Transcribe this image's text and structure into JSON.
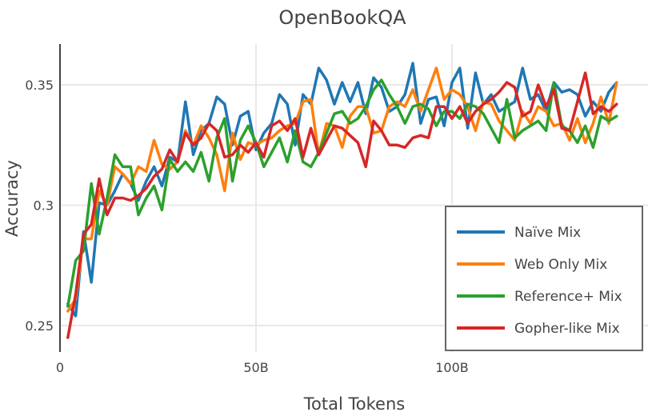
{
  "chart_data": {
    "type": "line",
    "title": "OpenBookQA",
    "xlabel": "Total Tokens",
    "ylabel": "Accuracy",
    "xlim": [
      0,
      150
    ],
    "ylim": [
      0.239,
      0.367
    ],
    "x_ticks": [
      {
        "value": 0,
        "label": "0"
      },
      {
        "value": 50,
        "label": "50B"
      },
      {
        "value": 100,
        "label": "100B"
      }
    ],
    "y_ticks": [
      {
        "value": 0.25,
        "label": "0.25"
      },
      {
        "value": 0.3,
        "label": "0.3"
      },
      {
        "value": 0.35,
        "label": "0.35"
      }
    ],
    "grid": true,
    "legend_position": "bottom-right",
    "x_start": 2,
    "x_step": 2,
    "series": [
      {
        "name": "Naïve Mix",
        "color": "#1f77b4",
        "values": [
          0.259,
          0.254,
          0.289,
          0.268,
          0.301,
          0.3,
          0.306,
          0.313,
          0.309,
          0.302,
          0.31,
          0.316,
          0.308,
          0.32,
          0.318,
          0.343,
          0.321,
          0.331,
          0.334,
          0.345,
          0.342,
          0.325,
          0.337,
          0.339,
          0.323,
          0.33,
          0.334,
          0.346,
          0.342,
          0.325,
          0.346,
          0.342,
          0.357,
          0.352,
          0.342,
          0.351,
          0.343,
          0.351,
          0.338,
          0.353,
          0.349,
          0.339,
          0.341,
          0.346,
          0.359,
          0.334,
          0.344,
          0.345,
          0.333,
          0.351,
          0.357,
          0.332,
          0.355,
          0.342,
          0.346,
          0.339,
          0.341,
          0.343,
          0.357,
          0.344,
          0.346,
          0.339,
          0.351,
          0.347,
          0.348,
          0.346,
          0.337,
          0.343,
          0.339,
          0.347,
          0.351
        ]
      },
      {
        "name": "Web Only Mix",
        "color": "#ff7f0e",
        "values": [
          0.256,
          0.261,
          0.286,
          0.286,
          0.306,
          0.3,
          0.316,
          0.313,
          0.309,
          0.316,
          0.314,
          0.327,
          0.317,
          0.315,
          0.318,
          0.331,
          0.325,
          0.333,
          0.328,
          0.321,
          0.306,
          0.33,
          0.319,
          0.326,
          0.325,
          0.327,
          0.328,
          0.331,
          0.333,
          0.334,
          0.343,
          0.344,
          0.321,
          0.334,
          0.333,
          0.324,
          0.337,
          0.341,
          0.341,
          0.33,
          0.331,
          0.341,
          0.343,
          0.341,
          0.348,
          0.339,
          0.348,
          0.357,
          0.344,
          0.348,
          0.346,
          0.341,
          0.331,
          0.343,
          0.342,
          0.335,
          0.331,
          0.327,
          0.339,
          0.334,
          0.341,
          0.339,
          0.333,
          0.334,
          0.327,
          0.336,
          0.326,
          0.334,
          0.345,
          0.334,
          0.351
        ]
      },
      {
        "name": "Reference+ Mix",
        "color": "#2ca02c",
        "values": [
          0.258,
          0.277,
          0.281,
          0.309,
          0.288,
          0.303,
          0.321,
          0.316,
          0.316,
          0.296,
          0.303,
          0.308,
          0.298,
          0.319,
          0.314,
          0.318,
          0.314,
          0.322,
          0.31,
          0.328,
          0.336,
          0.31,
          0.327,
          0.333,
          0.326,
          0.316,
          0.322,
          0.328,
          0.318,
          0.331,
          0.318,
          0.316,
          0.322,
          0.33,
          0.338,
          0.339,
          0.334,
          0.336,
          0.341,
          0.348,
          0.352,
          0.346,
          0.341,
          0.334,
          0.341,
          0.342,
          0.34,
          0.333,
          0.339,
          0.339,
          0.336,
          0.342,
          0.341,
          0.338,
          0.332,
          0.326,
          0.344,
          0.328,
          0.331,
          0.333,
          0.335,
          0.331,
          0.351,
          0.333,
          0.331,
          0.326,
          0.333,
          0.324,
          0.337,
          0.335,
          0.337
        ]
      },
      {
        "name": "Gopher-like Mix",
        "color": "#d62728",
        "values": [
          0.245,
          0.263,
          0.288,
          0.292,
          0.311,
          0.296,
          0.303,
          0.303,
          0.302,
          0.304,
          0.307,
          0.312,
          0.315,
          0.323,
          0.318,
          0.33,
          0.325,
          0.328,
          0.334,
          0.331,
          0.32,
          0.321,
          0.325,
          0.322,
          0.326,
          0.32,
          0.333,
          0.335,
          0.331,
          0.336,
          0.32,
          0.332,
          0.321,
          0.327,
          0.333,
          0.332,
          0.329,
          0.326,
          0.316,
          0.335,
          0.331,
          0.325,
          0.325,
          0.324,
          0.328,
          0.329,
          0.328,
          0.341,
          0.341,
          0.336,
          0.341,
          0.334,
          0.339,
          0.342,
          0.344,
          0.347,
          0.351,
          0.349,
          0.337,
          0.339,
          0.35,
          0.341,
          0.348,
          0.332,
          0.331,
          0.343,
          0.355,
          0.338,
          0.341,
          0.339,
          0.342
        ]
      }
    ]
  }
}
